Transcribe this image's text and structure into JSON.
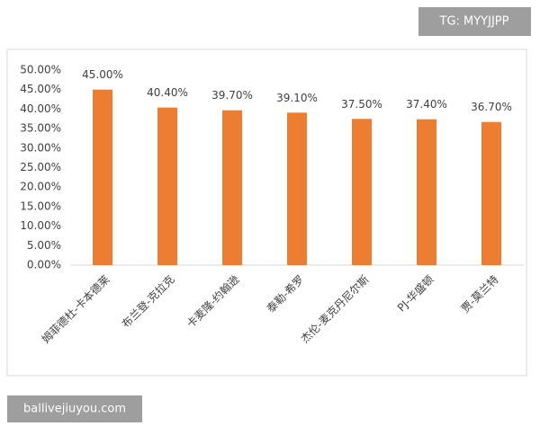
{
  "chart_data": {
    "type": "bar",
    "categories": [
      "姆菲德杜-卡本德莱",
      "布兰登-克拉克",
      "卡麦隆-约翰逊",
      "泰勒-希罗",
      "杰伦-麦克丹尼尔斯",
      "PJ-华盛顿",
      "贾-莫兰特"
    ],
    "values": [
      45,
      40.4,
      39.7,
      39.1,
      37.5,
      37.4,
      36.7
    ],
    "value_labels": [
      "45.00%",
      "40.40%",
      "39.70%",
      "39.10%",
      "37.50%",
      "37.40%",
      "36.70%"
    ],
    "color": "#ed7d31",
    "ylim": [
      0,
      50
    ],
    "yticks": [
      {
        "value": 0,
        "label": "0.00%"
      },
      {
        "value": 5,
        "label": "5.00%"
      },
      {
        "value": 10,
        "label": "10.00%"
      },
      {
        "value": 15,
        "label": "15.00%"
      },
      {
        "value": 20,
        "label": "20.00%"
      },
      {
        "value": 25,
        "label": "25.00%"
      },
      {
        "value": 30,
        "label": "30.00%"
      },
      {
        "value": 35,
        "label": "35.00%"
      },
      {
        "value": 40,
        "label": "40.00%"
      },
      {
        "value": 45,
        "label": "45.00%"
      },
      {
        "value": 50,
        "label": "50.00%"
      }
    ],
    "grid": false
  },
  "watermarks": {
    "top": "TG: MYYJJPP",
    "bottom": "ballivejiuyou.com"
  }
}
